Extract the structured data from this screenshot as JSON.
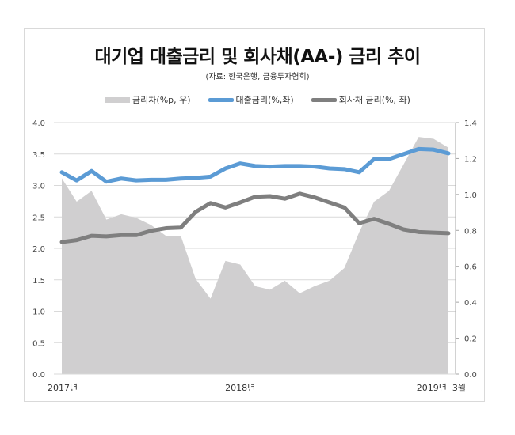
{
  "chart_data": {
    "type": "line+area",
    "title": "대기업 대출금리 및 회사채(AA-) 금리 추이",
    "subtitle": "(자료: 한국은행, 금융투자협회)",
    "x": [
      "2017.01",
      "2017.02",
      "2017.03",
      "2017.04",
      "2017.05",
      "2017.06",
      "2017.07",
      "2017.08",
      "2017.09",
      "2017.10",
      "2017.11",
      "2017.12",
      "2018.01",
      "2018.02",
      "2018.03",
      "2018.04",
      "2018.05",
      "2018.06",
      "2018.07",
      "2018.08",
      "2018.09",
      "2018.10",
      "2018.11",
      "2018.12",
      "2019.01",
      "2019.02",
      "2019.03"
    ],
    "x_tick_labels": [
      {
        "index": 0,
        "label": "2017년"
      },
      {
        "index": 12,
        "label": "2018년"
      },
      {
        "index": 26,
        "label": "2019년  3월"
      }
    ],
    "left_axis": {
      "ylim": [
        0,
        4.0
      ],
      "ticks": [
        "0.0",
        "0.5",
        "1.0",
        "1.5",
        "2.0",
        "2.5",
        "3.0",
        "3.5",
        "4.0"
      ]
    },
    "right_axis": {
      "ylim": [
        0,
        1.4
      ],
      "ticks": [
        "0.0",
        "0.2",
        "0.4",
        "0.6",
        "0.8",
        "1.0",
        "1.2",
        "1.4"
      ]
    },
    "grid": true,
    "legend_position": "top",
    "series": [
      {
        "name": "금리차(%p, 우)",
        "kind": "area",
        "axis": "right",
        "color": "#d0cfd0",
        "values": [
          1.09,
          0.96,
          1.02,
          0.86,
          0.89,
          0.87,
          0.83,
          0.77,
          0.77,
          0.53,
          0.42,
          0.63,
          0.61,
          0.49,
          0.47,
          0.52,
          0.45,
          0.49,
          0.52,
          0.59,
          0.79,
          0.96,
          1.02,
          1.17,
          1.32,
          1.31,
          1.26
        ]
      },
      {
        "name": "대출금리(%,좌)",
        "kind": "line",
        "axis": "left",
        "color": "#5b9bd5",
        "values": [
          3.21,
          3.08,
          3.23,
          3.06,
          3.11,
          3.08,
          3.09,
          3.09,
          3.11,
          3.12,
          3.14,
          3.27,
          3.35,
          3.31,
          3.3,
          3.31,
          3.31,
          3.3,
          3.27,
          3.26,
          3.21,
          3.42,
          3.42,
          3.5,
          3.58,
          3.57,
          3.51
        ]
      },
      {
        "name": "회사채 금리(%, 좌)",
        "kind": "line",
        "axis": "left",
        "color": "#7f7f7f",
        "values": [
          2.1,
          2.13,
          2.2,
          2.19,
          2.21,
          2.21,
          2.28,
          2.32,
          2.33,
          2.58,
          2.72,
          2.65,
          2.73,
          2.82,
          2.83,
          2.79,
          2.87,
          2.81,
          2.73,
          2.65,
          2.4,
          2.47,
          2.39,
          2.3,
          2.26,
          2.25,
          2.24
        ]
      }
    ]
  }
}
